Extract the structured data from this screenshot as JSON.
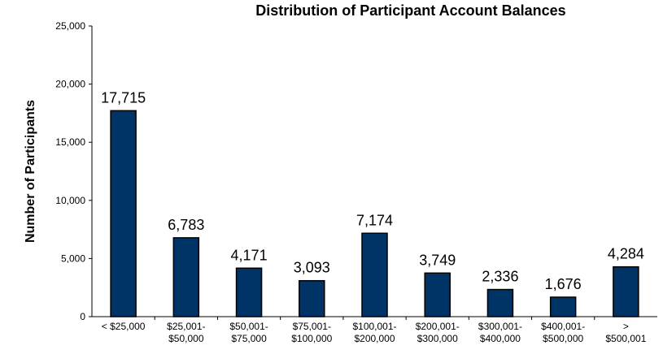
{
  "chart_data": {
    "type": "bar",
    "title": "Distribution of Participant Account Balances",
    "y_label": "Number of Participants",
    "categories": [
      "< $25,000",
      "$25,001-\n$50,000",
      "$50,001-\n$75,000",
      "$75,001-\n$100,000",
      "$100,001-\n$200,000",
      "$200,001-\n$300,000",
      "$300,001-\n$400,000",
      "$400,001-\n$500,000",
      ">\n$500,001"
    ],
    "values": [
      17715,
      6783,
      4171,
      3093,
      7174,
      3749,
      2336,
      1676,
      4284
    ],
    "value_labels": [
      "17,715",
      "6,783",
      "4,171",
      "3,093",
      "7,174",
      "3,749",
      "2,336",
      "1,676",
      "4,284"
    ],
    "color": "#003366",
    "ylim": [
      0,
      25000
    ],
    "yticks": [
      0,
      {
        "value": 5000,
        "label": "5,000"
      },
      {
        "value": 10000,
        "label": "10,000"
      },
      {
        "value": 15000,
        "label": "15,000"
      },
      {
        "value": 20000,
        "label": "20,000"
      },
      {
        "value": 25000,
        "label": "25,000"
      }
    ],
    "grid": false
  }
}
